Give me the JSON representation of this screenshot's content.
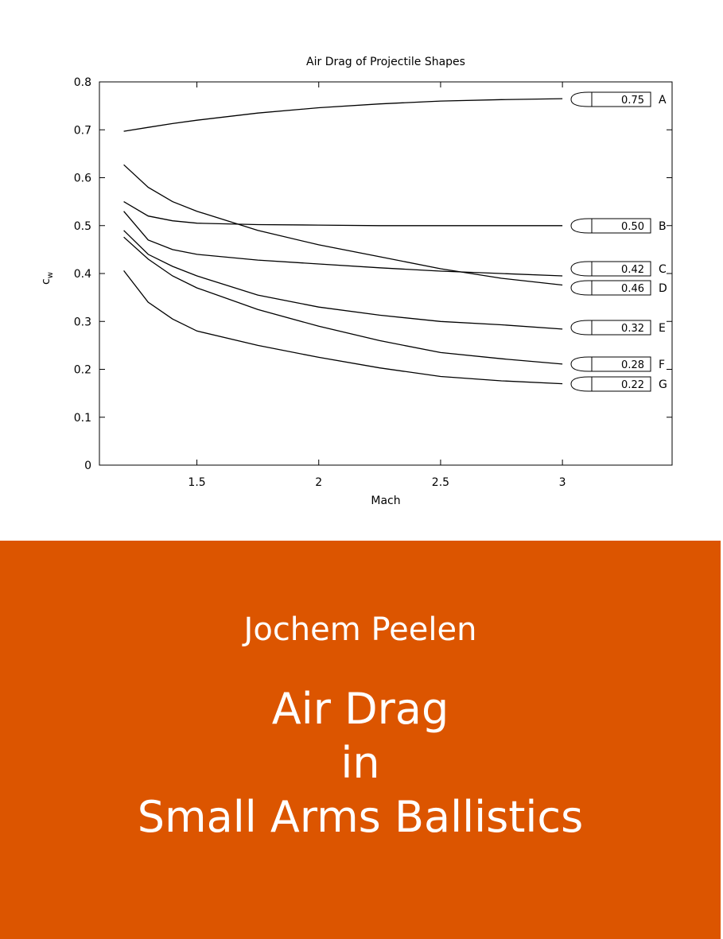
{
  "chart_data": {
    "type": "line",
    "title": "Air Drag of Projectile Shapes",
    "x_label": "Mach",
    "y_label": "c",
    "y_label_subscript": "w",
    "x": [
      1.2,
      1.3,
      1.4,
      1.5,
      1.75,
      2,
      2.25,
      2.5,
      2.75,
      3
    ],
    "series": [
      {
        "name": "A",
        "tag": "0.75",
        "color": "#000000",
        "values": [
          0.697,
          0.705,
          0.713,
          0.72,
          0.735,
          0.746,
          0.754,
          0.76,
          0.763,
          0.765
        ]
      },
      {
        "name": "B",
        "tag": "0.50",
        "color": "#000000",
        "values": [
          0.55,
          0.52,
          0.51,
          0.505,
          0.502,
          0.501,
          0.5,
          0.5,
          0.5,
          0.5
        ]
      },
      {
        "name": "C",
        "tag": "0.42",
        "color": "#000000",
        "values": [
          0.53,
          0.47,
          0.45,
          0.44,
          0.428,
          0.42,
          0.412,
          0.405,
          0.4,
          0.395
        ]
      },
      {
        "name": "D",
        "tag": "0.46",
        "color": "#000000",
        "values": [
          0.627,
          0.58,
          0.55,
          0.53,
          0.49,
          0.46,
          0.435,
          0.41,
          0.39,
          0.376
        ]
      },
      {
        "name": "E",
        "tag": "0.32",
        "color": "#000000",
        "values": [
          0.49,
          0.44,
          0.415,
          0.395,
          0.355,
          0.33,
          0.313,
          0.3,
          0.293,
          0.284
        ]
      },
      {
        "name": "F",
        "tag": "0.28",
        "color": "#000000",
        "values": [
          0.476,
          0.43,
          0.395,
          0.37,
          0.325,
          0.29,
          0.26,
          0.235,
          0.222,
          0.211
        ]
      },
      {
        "name": "G",
        "tag": "0.22",
        "color": "#000000",
        "values": [
          0.406,
          0.34,
          0.305,
          0.28,
          0.25,
          0.225,
          0.203,
          0.185,
          0.176,
          0.17
        ]
      }
    ],
    "xlim": [
      1.1,
      3.45
    ],
    "xticks": [
      1.5,
      2,
      2.5,
      3
    ],
    "ylim": [
      0,
      0.8
    ],
    "yticks": [
      0,
      0.1,
      0.2,
      0.3,
      0.4,
      0.5,
      0.6,
      0.7,
      0.8
    ]
  },
  "cover": {
    "author": "Jochem Peelen",
    "title_lines": [
      "Air Drag",
      "in",
      "Small Arms Ballistics"
    ],
    "background": "#dc5500"
  }
}
